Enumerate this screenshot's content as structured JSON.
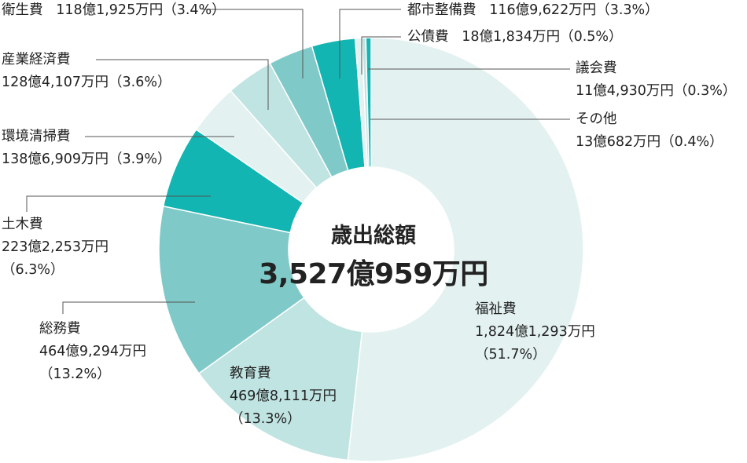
{
  "chart_data": {
    "type": "pie",
    "donut": true,
    "center_title": "歳出総額",
    "center_total": "3,527億959万円",
    "slices": [
      {
        "name": "福祉費",
        "amount": "1,824億1,293万円",
        "pct_label": "（51.7%）",
        "value": 51.7,
        "color": "#e3f2f1"
      },
      {
        "name": "教育費",
        "amount": "469億8,111万円",
        "pct_label": "（13.3%）",
        "value": 13.3,
        "color": "#bfe4e2"
      },
      {
        "name": "総務費",
        "amount": "464億9,294万円",
        "pct_label": "（13.2%）",
        "value": 13.2,
        "color": "#7fcac8"
      },
      {
        "name": "土木費",
        "amount": "223億2,253万円",
        "pct_label": "（6.3%）",
        "value": 6.3,
        "color": "#12b5b2"
      },
      {
        "name": "環境清掃費",
        "amount": "138億6,909万円",
        "pct_label": "（3.9%）",
        "value": 3.9,
        "color": "#e3f2f1"
      },
      {
        "name": "産業経済費",
        "amount": "128億4,107万円",
        "pct_label": "（3.6%）",
        "value": 3.6,
        "color": "#bfe4e2"
      },
      {
        "name": "衛生費",
        "amount": "118億1,925万円",
        "pct_label": "（3.4%）",
        "value": 3.4,
        "color": "#7fcac8"
      },
      {
        "name": "都市整備費",
        "amount": "116億9,622万円",
        "pct_label": "（3.3%）",
        "value": 3.3,
        "color": "#12b5b2"
      },
      {
        "name": "公債費",
        "amount": "18億1,834万円",
        "pct_label": "（0.5%）",
        "value": 0.5,
        "color": "#e3f2f1"
      },
      {
        "name": "議会費",
        "amount": "11億4,930万円",
        "pct_label": "（0.3%）",
        "value": 0.3,
        "color": "#bfe4e2"
      },
      {
        "name": "その他",
        "amount": "13億682万円",
        "pct_label": "（0.4%）",
        "value": 0.4,
        "color": "#12b5b2"
      }
    ]
  }
}
